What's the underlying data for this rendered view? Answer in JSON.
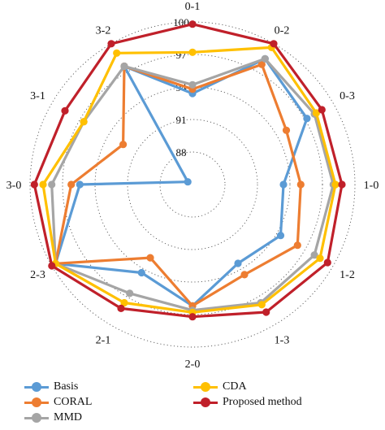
{
  "chart_data": {
    "type": "radar",
    "title": "",
    "categories": [
      "0-1",
      "0-2",
      "0-3",
      "1-0",
      "1-2",
      "1-3",
      "2-0",
      "2-1",
      "2-3",
      "3-0",
      "3-1",
      "3-2"
    ],
    "rlim": [
      85,
      100
    ],
    "radial_ticks": [
      88,
      91,
      94,
      97,
      100
    ],
    "grid": "dotted circles",
    "legend_position": "bottom",
    "series": [
      {
        "name": "Basis",
        "color": "#5b9bd5",
        "values": [
          93.4,
          98.4,
          97.2,
          93.4,
          94.4,
          93.4,
          96.2,
          94.4,
          99.6,
          95.4,
          85.5,
          97.6
        ]
      },
      {
        "name": "CORAL",
        "color": "#ed7d31",
        "values": [
          93.8,
          97.8,
          95.0,
          95.0,
          96.2,
          94.6,
          96.2,
          92.8,
          99.6,
          96.2,
          92.4,
          97.6
        ]
      },
      {
        "name": "MMD",
        "color": "#a5a5a5",
        "values": [
          94.2,
          98.4,
          98.0,
          98.0,
          98.0,
          97.6,
          96.6,
          96.6,
          99.6,
          98.0,
          96.6,
          97.6
        ]
      },
      {
        "name": "CDA",
        "color": "#ffc000",
        "values": [
          97.2,
          99.6,
          98.2,
          98.2,
          98.6,
          97.8,
          96.8,
          97.6,
          99.6,
          98.8,
          96.6,
          99.0
        ]
      },
      {
        "name": "Proposed method",
        "color": "#c0202a",
        "values": [
          99.8,
          100.0,
          98.8,
          98.8,
          99.4,
          98.6,
          97.2,
          98.2,
          100.0,
          99.6,
          98.6,
          100.0
        ]
      }
    ]
  }
}
